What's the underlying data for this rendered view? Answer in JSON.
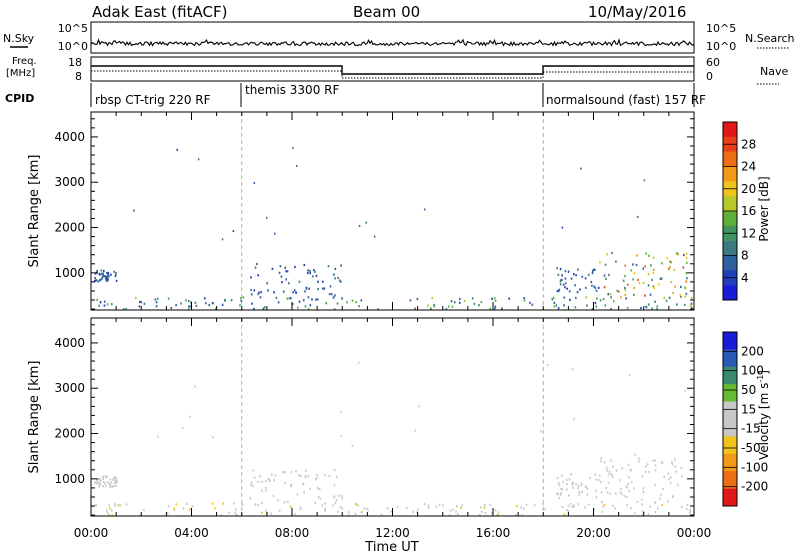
{
  "header": {
    "station": "Adak East (fitACF)",
    "beam": "Beam 00",
    "date": "10/May/2016"
  },
  "top_panels": {
    "nsky_label": "N.Sky",
    "nsearch_label": "N.Search",
    "noise_ticks_left": [
      "10^5",
      "10^0"
    ],
    "noise_ticks_right": [
      "10^5",
      "10^0"
    ],
    "freq_label_line1": "Freq.",
    "freq_label_line2": "[MHz]",
    "freq_ticks": [
      "18",
      "8"
    ],
    "nave_ticks": [
      "60",
      "0"
    ],
    "nave_label": "Nave",
    "cpid_label": "CPID",
    "cpid_segments": [
      {
        "label": "rbsp CT-trig 220 RF",
        "start_hour": 0,
        "end_hour": 6
      },
      {
        "label": "themis 3300 RF",
        "start_hour": 6,
        "end_hour": 18
      },
      {
        "label": "normalsound (fast) 157 RF",
        "start_hour": 18,
        "end_hour": 24
      }
    ]
  },
  "colorbars": {
    "power": {
      "label": "Power [dB]",
      "ticks": [
        "4",
        "8",
        "12",
        "16",
        "20",
        "24",
        "28"
      ],
      "colors": [
        "#1a1ad9",
        "#2040b8",
        "#2e5f9e",
        "#3a7a80",
        "#3f9460",
        "#5fae3a",
        "#b8c828",
        "#f0c418",
        "#f29a16",
        "#ee6e16",
        "#e84018",
        "#e01818"
      ]
    },
    "velocity": {
      "label_main": "Velocity [m s",
      "label_sup": "-1",
      "label_end": "]",
      "ticks": [
        "200",
        "100",
        "50",
        "15",
        "-15",
        "-50",
        "-100",
        "-200"
      ],
      "colors": [
        "#1a1ad9",
        "#2a5ab8",
        "#3a8a70",
        "#66bb33",
        "#c8c8c8",
        "#c8c8c8",
        "#f0c418",
        "#f29a16",
        "#ee6e16",
        "#e01818"
      ]
    }
  },
  "axes": {
    "ylabel": "Slant Range [km]",
    "xlabel": "Time UT",
    "x_tick_labels": [
      "00:00",
      "04:00",
      "08:00",
      "12:00",
      "16:00",
      "20:00",
      "00:00"
    ],
    "y_tick_labels": [
      "1000",
      "2000",
      "3000",
      "4000"
    ]
  },
  "chart_data": [
    {
      "type": "heatmap",
      "name": "Power",
      "xlabel": "Time UT",
      "ylabel": "Slant Range [km]",
      "xlim": [
        0,
        24
      ],
      "ylim": [
        180,
        4550
      ],
      "colorbar_range": [
        0,
        30
      ],
      "clusters": [
        {
          "x_range": [
            0.1,
            1.0
          ],
          "y_range": [
            800,
            1050
          ],
          "value_range": [
            3,
            8
          ]
        },
        {
          "x_range": [
            0.0,
            24.0
          ],
          "y_range": [
            180,
            450
          ],
          "value_range": [
            3,
            16
          ]
        },
        {
          "x_range": [
            6.3,
            10.0
          ],
          "y_range": [
            400,
            1200
          ],
          "value_range": [
            3,
            9
          ]
        },
        {
          "x_range": [
            18.5,
            20.2
          ],
          "y_range": [
            550,
            1100
          ],
          "value_range": [
            3,
            10
          ]
        },
        {
          "x_range": [
            20.2,
            23.7
          ],
          "y_range": [
            450,
            1450
          ],
          "value_range": [
            5,
            26
          ]
        }
      ]
    },
    {
      "type": "heatmap",
      "name": "Velocity",
      "xlabel": "Time UT",
      "ylabel": "Slant Range [km]",
      "xlim": [
        0,
        24
      ],
      "ylim": [
        180,
        4550
      ],
      "colorbar_range": [
        -250,
        250
      ],
      "clusters": [
        {
          "x_range": [
            0.1,
            1.0
          ],
          "y_range": [
            800,
            1050
          ],
          "value_range": [
            -10,
            10
          ]
        },
        {
          "x_range": [
            0.0,
            24.0
          ],
          "y_range": [
            180,
            450
          ],
          "value_range": [
            -60,
            40
          ]
        },
        {
          "x_range": [
            6.3,
            10.0
          ],
          "y_range": [
            400,
            1200
          ],
          "value_range": [
            -15,
            20
          ]
        },
        {
          "x_range": [
            18.5,
            20.2
          ],
          "y_range": [
            550,
            1100
          ],
          "value_range": [
            -10,
            10
          ]
        },
        {
          "x_range": [
            20.2,
            23.7
          ],
          "y_range": [
            450,
            1450
          ],
          "value_range": [
            -15,
            15
          ]
        }
      ]
    }
  ]
}
